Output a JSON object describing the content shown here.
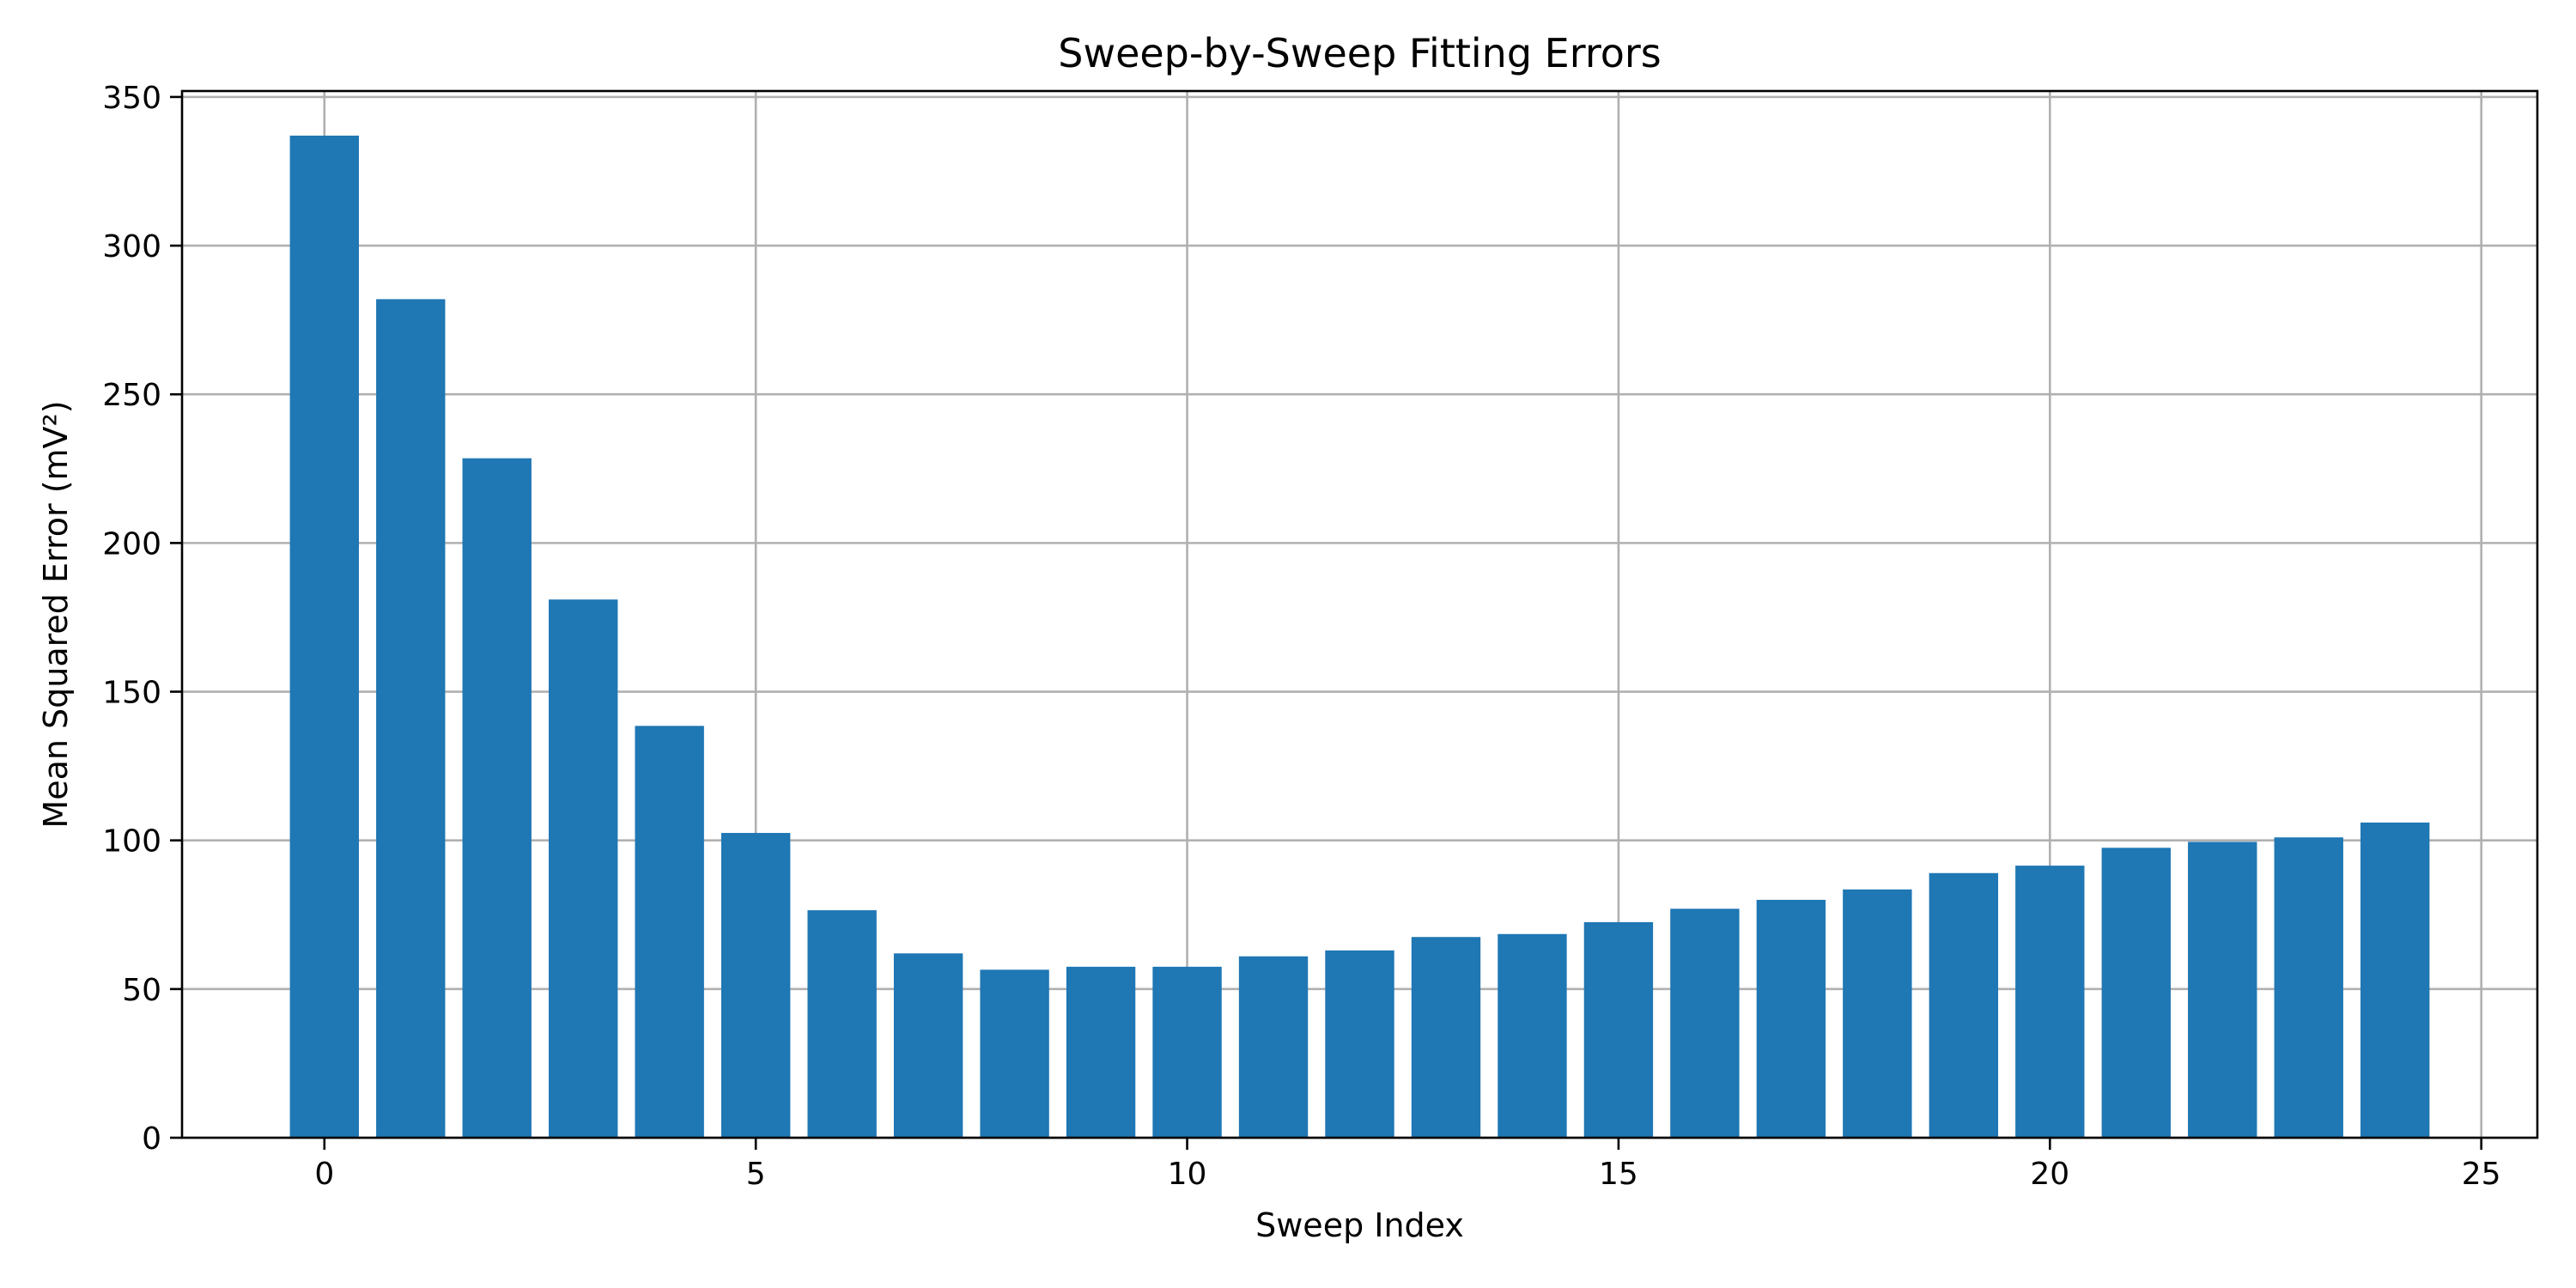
{
  "chart_data": {
    "type": "bar",
    "title": "Sweep-by-Sweep Fitting Errors",
    "xlabel": "Sweep Index",
    "ylabel": "Mean Squared Error (mV²)",
    "x": [
      0,
      1,
      2,
      3,
      4,
      5,
      6,
      7,
      8,
      9,
      10,
      11,
      12,
      13,
      14,
      15,
      16,
      17,
      18,
      19,
      20,
      21,
      22,
      23,
      24
    ],
    "values": [
      337,
      282,
      228.5,
      181,
      138.5,
      102.5,
      76.5,
      62,
      56.5,
      57.5,
      57.5,
      61,
      63,
      67.5,
      68.5,
      72.5,
      77,
      80,
      83.5,
      89,
      91.5,
      97.5,
      99.5,
      101,
      106
    ],
    "xlim": [
      -1.65,
      25.65
    ],
    "ylim": [
      0,
      352
    ],
    "xticks": [
      "0",
      "5",
      "10",
      "15",
      "20",
      "25"
    ],
    "yticks": [
      "0",
      "50",
      "100",
      "150",
      "200",
      "250",
      "300",
      "350"
    ],
    "grid": true,
    "bar_color": "#1f77b4",
    "grid_color": "#b0b0b0"
  }
}
